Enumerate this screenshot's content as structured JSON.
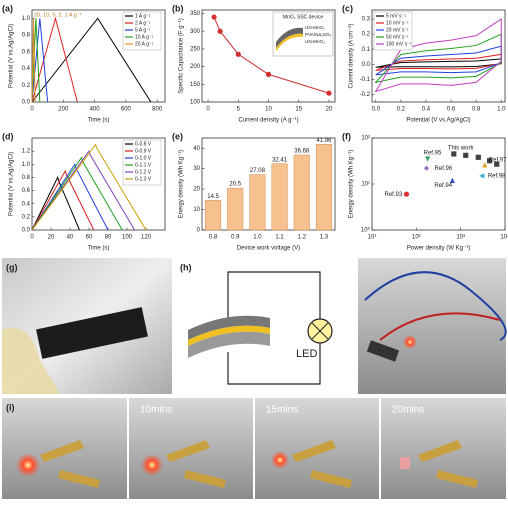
{
  "chart_data": [
    {
      "type": "line",
      "label": "(a)",
      "xlabel": "Time (s)",
      "ylabel": "Potential (V vs.Ag/AgCl)",
      "xlim": [
        0,
        850
      ],
      "ylim": [
        0,
        1.1
      ],
      "xticks": [
        0,
        200,
        400,
        600,
        800
      ],
      "yticks": [
        {
          "value": 0,
          "label": "0.0"
        },
        0.2,
        0.4,
        0.6,
        0.8,
        {
          "value": 1,
          "label": "1.0"
        }
      ],
      "legend": "upper right",
      "annotation": "20, 10, 5, 2, 1 A g⁻¹",
      "series": [
        {
          "name": "1 A g⁻¹",
          "color": "#000000",
          "x": [
            0,
            420,
            760
          ],
          "values": [
            0,
            1,
            0
          ]
        },
        {
          "name": "2 A g⁻¹",
          "color": "#e02020",
          "x": [
            0,
            150,
            290
          ],
          "values": [
            0,
            1,
            0
          ]
        },
        {
          "name": "5 A g⁻¹",
          "color": "#2040e0",
          "x": [
            0,
            50,
            100
          ],
          "values": [
            0,
            1,
            0
          ]
        },
        {
          "name": "10 A g⁻¹",
          "color": "#20a020",
          "x": [
            0,
            25,
            50
          ],
          "values": [
            0,
            1,
            0
          ]
        },
        {
          "name": "20 A g⁻¹",
          "color": "#e09020",
          "x": [
            0,
            10,
            20
          ],
          "values": [
            0,
            1,
            0
          ]
        }
      ]
    },
    {
      "type": "line",
      "markers": true,
      "label": "(b)",
      "xlabel": "Current density (A g⁻¹)",
      "ylabel": "Specific Capacitance (F g⁻¹)",
      "xlim": [
        -1,
        21
      ],
      "ylim": [
        100,
        360
      ],
      "xticks": [
        0,
        5,
        10,
        15,
        20
      ],
      "yticks": [
        100,
        150,
        200,
        250,
        300,
        350
      ],
      "color": "#d03030",
      "x": [
        1,
        2,
        5,
        10,
        20
      ],
      "values": [
        340,
        300,
        235,
        178,
        125
      ],
      "inset_title": "MnO₂ SSC device",
      "inset_labels": [
        "UN-MnO₂",
        "PVA/Na₂SO₄",
        "UN-MnO₂"
      ]
    },
    {
      "type": "line",
      "closed": true,
      "label": "(c)",
      "xlabel": "Potential (V vs.Ag/AgCl)",
      "ylabel": "Current density (A cm⁻²)",
      "xlim": [
        -0.03,
        1.03
      ],
      "ylim": [
        -0.25,
        0.36
      ],
      "xticks": [
        {
          "value": 0,
          "label": "0.0"
        },
        0.2,
        0.4,
        0.6,
        0.8,
        {
          "value": 1,
          "label": "1.0"
        }
      ],
      "yticks": [
        -0.2,
        -0.1,
        {
          "value": 0,
          "label": "0.0"
        },
        0.1,
        0.2,
        0.3
      ],
      "legend": "upper left",
      "x": [
        0,
        0.2,
        0.4,
        0.6,
        0.8,
        1,
        1,
        0.8,
        0.6,
        0.4,
        0.2,
        0
      ],
      "series": [
        {
          "name": "5 mV s⁻¹",
          "color": "#000000",
          "values": [
            -0.02,
            0.012,
            0.016,
            0.019,
            0.022,
            0.036,
            0.003,
            -0.015,
            -0.017,
            -0.016,
            -0.016,
            -0.02
          ]
        },
        {
          "name": "10 mV s⁻¹",
          "color": "#e02020",
          "values": [
            -0.04,
            0.022,
            0.03,
            0.035,
            0.04,
            0.066,
            0.005,
            -0.027,
            -0.03,
            -0.028,
            -0.028,
            -0.04
          ]
        },
        {
          "name": "20 mV s⁻¹",
          "color": "#2040e0",
          "values": [
            -0.07,
            0.04,
            0.055,
            0.065,
            0.075,
            0.12,
            0.01,
            -0.05,
            -0.055,
            -0.05,
            -0.05,
            -0.07
          ]
        },
        {
          "name": "50 mV s⁻¹",
          "color": "#20a020",
          "values": [
            -0.12,
            0.065,
            0.09,
            0.105,
            0.125,
            0.2,
            0.01,
            -0.08,
            -0.09,
            -0.085,
            -0.085,
            -0.12
          ]
        },
        {
          "name": "100 mV s⁻¹",
          "color": "#c040c0",
          "values": [
            -0.18,
            0.1,
            0.14,
            0.16,
            0.19,
            0.3,
            0.02,
            -0.12,
            -0.14,
            -0.13,
            -0.13,
            -0.18
          ]
        }
      ]
    },
    {
      "type": "line",
      "label": "(d)",
      "xlabel": "Time (s)",
      "ylabel": "Potential (V vs.Ag/AgCl)",
      "xlim": [
        0,
        140
      ],
      "ylim": [
        0,
        1.4
      ],
      "xticks": [
        0,
        20,
        40,
        60,
        80,
        100,
        120
      ],
      "yticks": [
        {
          "value": 0,
          "label": "0.0"
        },
        0.2,
        0.4,
        0.6,
        0.8,
        {
          "value": 1,
          "label": "1.0"
        },
        1.2
      ],
      "legend": "upper right",
      "series": [
        {
          "name": "0-0.8 V",
          "color": "#000000",
          "x": [
            0,
            27,
            28,
            50
          ],
          "values": [
            0,
            0.8,
            0.75,
            0
          ]
        },
        {
          "name": "0-0.9 V",
          "color": "#e02020",
          "x": [
            0,
            35,
            36,
            65
          ],
          "values": [
            0,
            0.9,
            0.85,
            0
          ]
        },
        {
          "name": "0-1.0 V",
          "color": "#2040e0",
          "x": [
            0,
            45,
            46,
            80
          ],
          "values": [
            0,
            1,
            0.95,
            0
          ]
        },
        {
          "name": "0-1.1 V",
          "color": "#20a020",
          "x": [
            0,
            52,
            53,
            95
          ],
          "values": [
            0,
            1.1,
            1.05,
            0
          ]
        },
        {
          "name": "0-1.2 V",
          "color": "#8040c0",
          "x": [
            0,
            60,
            61,
            108
          ],
          "values": [
            0,
            1.2,
            1.15,
            0
          ]
        },
        {
          "name": "0-1.3 V",
          "color": "#c8a000",
          "x": [
            0,
            67,
            68,
            120
          ],
          "values": [
            0,
            1.3,
            1.25,
            0
          ]
        }
      ]
    },
    {
      "type": "bar",
      "label": "(e)",
      "xlabel": "Device work voltage (V)",
      "ylabel": "Energy density (Wh Kg⁻¹)",
      "categories": [
        "0.8",
        "0.9",
        "1.0",
        "1.1",
        "1.2",
        "1.3"
      ],
      "values": [
        14.5,
        20.5,
        27.08,
        32.41,
        36.68,
        41.96
      ],
      "ylim": [
        0,
        45
      ],
      "yticks": [
        0,
        10,
        20,
        30,
        40
      ],
      "color": "#f6c18e"
    },
    {
      "type": "scatter",
      "log": true,
      "label": "(f)",
      "xlabel": "Power density (W Kg⁻¹)",
      "ylabel": "Energy density (Wh Kg⁻¹)",
      "xlim": [
        10,
        10000
      ],
      "ylim": [
        1,
        100
      ],
      "xticks": [
        {
          "value": 10,
          "label": "10¹"
        },
        {
          "value": 100,
          "label": "10²"
        },
        {
          "value": 1000,
          "label": "10³"
        },
        {
          "value": 10000,
          "label": "10⁴"
        }
      ],
      "yticks": [
        {
          "value": 1,
          "label": "10⁰"
        },
        {
          "value": 10,
          "label": "10¹"
        },
        {
          "value": 100,
          "label": "10²"
        }
      ],
      "series": [
        {
          "name": "This work",
          "color": "#404040",
          "marker": "square",
          "x": [
            700,
            1300,
            2500,
            4500,
            6500
          ],
          "values": [
            45,
            42,
            38,
            32,
            27
          ]
        },
        {
          "name": "Ref.95",
          "color": "#30a060",
          "marker": "triangle-down",
          "x": [
            180
          ],
          "values": [
            35
          ]
        },
        {
          "name": "Ref.96",
          "color": "#a070c0",
          "marker": "diamond",
          "x": [
            170
          ],
          "values": [
            22
          ]
        },
        {
          "name": "Ref.97",
          "color": "#e0a020",
          "marker": "triangle",
          "x": [
            3500
          ],
          "values": [
            26
          ]
        },
        {
          "name": "Ref.98",
          "color": "#30b0d0",
          "marker": "triangle-left",
          "x": [
            3000
          ],
          "values": [
            15
          ]
        },
        {
          "name": "Ref.94",
          "color": "#3050c0",
          "marker": "triangle",
          "x": [
            650
          ],
          "values": [
            12
          ]
        },
        {
          "name": "Ref.93",
          "color": "#e03030",
          "marker": "circle",
          "x": [
            60
          ],
          "values": [
            6
          ]
        }
      ]
    }
  ],
  "photos": {
    "g": "(g)",
    "h": "(h)",
    "led": "LED",
    "i": "(i)",
    "times": [
      "10mins",
      "15mins",
      "20mins"
    ]
  }
}
